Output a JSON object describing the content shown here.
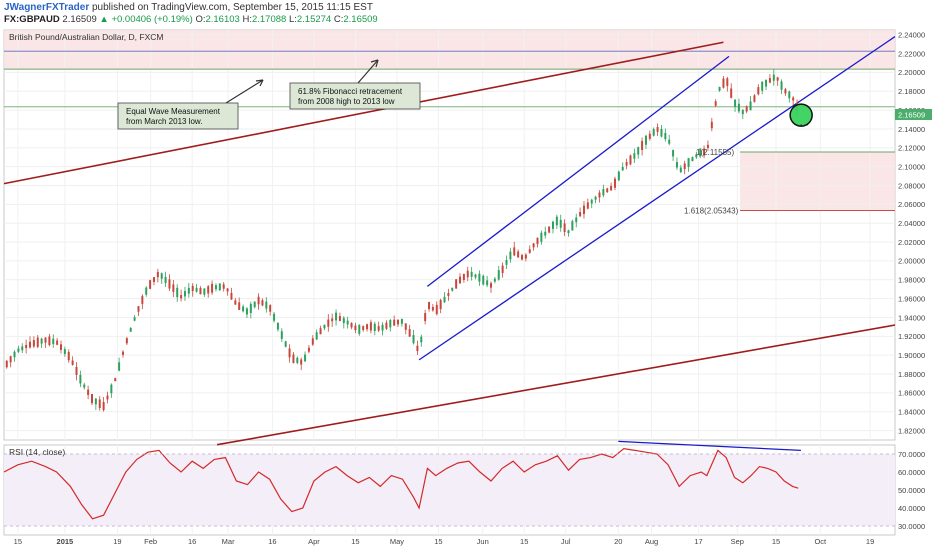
{
  "header": {
    "author": "JWagnerFXTrader",
    "published_text": "published on TradingView.com, September 15, 2015 11:15 EST",
    "symbol": "FX:GBPAUD",
    "last": "2.16509",
    "change": "▲ +0.00406 (+0.19%)",
    "o_label": "O:",
    "o_value": "2.16103",
    "h_label": "H:",
    "h_value": "2.17088",
    "l_label": "L:",
    "l_value": "2.15274",
    "c_label": "C:",
    "c_value": "2.16509"
  },
  "main_pane_title": "British Pound/Australian Dollar, D, FXCM",
  "rsi_pane_title": "RSI (14, close)",
  "annotations": {
    "equal_wave": [
      "Equal Wave Measurement",
      "from March 2013 low."
    ],
    "fib_618": [
      "61.8% Fibonacci retracement",
      "from 2008 high to 2013 low"
    ]
  },
  "fib_levels": {
    "label_1": "1(2.11555)",
    "label_1618": "1.618(2.05343)",
    "level_1": 2.11555,
    "level_1618": 2.05343
  },
  "current_price_tag": "2.16509",
  "colors": {
    "up": "#2ea05e",
    "down": "#c8473b",
    "channel": "#1a1acc",
    "trendline": "#a01c1c",
    "rsi": "#d42a2a",
    "zone": "#f9e2e2",
    "circle": "#35d35a"
  },
  "chart_data": {
    "type": "candlestick",
    "y_axis": {
      "ylim": [
        1.81,
        2.245
      ],
      "ticks": [
        "2.24000",
        "2.22000",
        "2.20000",
        "2.18000",
        "2.16000",
        "2.14000",
        "2.12000",
        "2.10000",
        "2.08000",
        "2.06000",
        "2.04000",
        "2.02000",
        "2.00000",
        "1.98000",
        "1.96000",
        "1.94000",
        "1.92000",
        "1.90000",
        "1.88000",
        "1.86000",
        "1.84000",
        "1.82000"
      ]
    },
    "x_axis": {
      "labels": [
        "15",
        "2015",
        "19",
        "Feb",
        "16",
        "Mar",
        "16",
        "Apr",
        "15",
        "May",
        "15",
        "Jun",
        "15",
        "Jul",
        "20",
        "Aug",
        "17",
        "Sep",
        "15",
        "Oct",
        "19"
      ],
      "label_days": [
        -17,
        0,
        19,
        31,
        46,
        59,
        75,
        90,
        105,
        120,
        135,
        151,
        166,
        181,
        200,
        212,
        229,
        243,
        257,
        273,
        291
      ]
    },
    "x_range_days": [
      -22,
      300
    ],
    "price_path": [
      [
        -22,
        1.887
      ],
      [
        -17,
        1.905
      ],
      [
        -12,
        1.912
      ],
      [
        -7,
        1.916
      ],
      [
        -3,
        1.914
      ],
      [
        2,
        1.897
      ],
      [
        6,
        1.872
      ],
      [
        10,
        1.853
      ],
      [
        14,
        1.846
      ],
      [
        18,
        1.872
      ],
      [
        22,
        1.912
      ],
      [
        26,
        1.945
      ],
      [
        30,
        1.972
      ],
      [
        34,
        1.987
      ],
      [
        38,
        1.975
      ],
      [
        42,
        1.962
      ],
      [
        46,
        1.971
      ],
      [
        50,
        1.967
      ],
      [
        54,
        1.972
      ],
      [
        58,
        1.973
      ],
      [
        62,
        1.954
      ],
      [
        66,
        1.946
      ],
      [
        70,
        1.958
      ],
      [
        74,
        1.951
      ],
      [
        78,
        1.924
      ],
      [
        82,
        1.897
      ],
      [
        86,
        1.892
      ],
      [
        90,
        1.917
      ],
      [
        94,
        1.931
      ],
      [
        98,
        1.941
      ],
      [
        102,
        1.935
      ],
      [
        106,
        1.927
      ],
      [
        110,
        1.931
      ],
      [
        114,
        1.928
      ],
      [
        118,
        1.934
      ],
      [
        122,
        1.936
      ],
      [
        126,
        1.917
      ],
      [
        128,
        1.903
      ],
      [
        131,
        1.954
      ],
      [
        134,
        1.947
      ],
      [
        138,
        1.962
      ],
      [
        142,
        1.978
      ],
      [
        146,
        1.987
      ],
      [
        150,
        1.982
      ],
      [
        154,
        1.974
      ],
      [
        158,
        1.99
      ],
      [
        162,
        2.011
      ],
      [
        166,
        2.002
      ],
      [
        170,
        2.019
      ],
      [
        174,
        2.03
      ],
      [
        178,
        2.043
      ],
      [
        182,
        2.031
      ],
      [
        186,
        2.049
      ],
      [
        190,
        2.062
      ],
      [
        194,
        2.072
      ],
      [
        198,
        2.078
      ],
      [
        202,
        2.1
      ],
      [
        206,
        2.112
      ],
      [
        210,
        2.128
      ],
      [
        214,
        2.14
      ],
      [
        218,
        2.13
      ],
      [
        222,
        2.095
      ],
      [
        226,
        2.106
      ],
      [
        230,
        2.116
      ],
      [
        232,
        2.115
      ],
      [
        236,
        2.18
      ],
      [
        239,
        2.193
      ],
      [
        242,
        2.168
      ],
      [
        245,
        2.158
      ],
      [
        248,
        2.165
      ],
      [
        251,
        2.183
      ],
      [
        254,
        2.19
      ],
      [
        257,
        2.196
      ],
      [
        260,
        2.181
      ],
      [
        263,
        2.173
      ],
      [
        265,
        2.161
      ]
    ],
    "fib_1": 2.11555,
    "fib_1618": 2.05343,
    "channel": {
      "lower": [
        [
          128,
          1.895
        ],
        [
          300,
          2.238
        ]
      ],
      "upper": [
        [
          131,
          1.973
        ],
        [
          240,
          2.217
        ]
      ]
    },
    "trendlines": [
      {
        "from": [
          -22,
          2.082
        ],
        "to": [
          238,
          2.232
        ]
      },
      {
        "from": [
          55,
          1.805
        ],
        "to": [
          300,
          1.932
        ]
      }
    ],
    "horizontal_lines": [
      2.2225,
      2.2035,
      2.1635
    ],
    "zone": {
      "from_y": 2.2035,
      "to_y": 2.245
    },
    "target_zone": {
      "from_day": 244,
      "from_y": 2.05343,
      "to_y": 2.11555
    },
    "rsi": {
      "title": "RSI (14, close)",
      "ylim": [
        25,
        75
      ],
      "ticks": [
        "70.0000",
        "60.0000",
        "50.0000",
        "40.0000",
        "30.0000"
      ],
      "values": [
        [
          -22,
          60
        ],
        [
          -17,
          64
        ],
        [
          -12,
          66
        ],
        [
          -7,
          63
        ],
        [
          -3,
          60
        ],
        [
          2,
          52
        ],
        [
          6,
          42
        ],
        [
          10,
          34
        ],
        [
          14,
          36
        ],
        [
          18,
          48
        ],
        [
          22,
          60
        ],
        [
          26,
          67
        ],
        [
          30,
          71
        ],
        [
          34,
          72
        ],
        [
          38,
          65
        ],
        [
          42,
          60
        ],
        [
          46,
          66
        ],
        [
          50,
          62
        ],
        [
          54,
          67
        ],
        [
          58,
          68
        ],
        [
          62,
          55
        ],
        [
          66,
          53
        ],
        [
          70,
          60
        ],
        [
          74,
          56
        ],
        [
          78,
          45
        ],
        [
          82,
          38
        ],
        [
          86,
          40
        ],
        [
          90,
          55
        ],
        [
          94,
          60
        ],
        [
          98,
          63
        ],
        [
          102,
          58
        ],
        [
          106,
          54
        ],
        [
          110,
          57
        ],
        [
          114,
          52
        ],
        [
          118,
          58
        ],
        [
          122,
          56
        ],
        [
          126,
          46
        ],
        [
          128,
          40
        ],
        [
          131,
          62
        ],
        [
          134,
          58
        ],
        [
          138,
          62
        ],
        [
          142,
          65
        ],
        [
          146,
          66
        ],
        [
          150,
          60
        ],
        [
          154,
          55
        ],
        [
          158,
          62
        ],
        [
          162,
          66
        ],
        [
          166,
          60
        ],
        [
          170,
          64
        ],
        [
          174,
          66
        ],
        [
          178,
          69
        ],
        [
          182,
          61
        ],
        [
          186,
          67
        ],
        [
          190,
          68
        ],
        [
          194,
          70
        ],
        [
          198,
          68
        ],
        [
          202,
          73
        ],
        [
          206,
          72
        ],
        [
          210,
          71
        ],
        [
          214,
          70
        ],
        [
          218,
          64
        ],
        [
          222,
          52
        ],
        [
          226,
          58
        ],
        [
          230,
          60
        ],
        [
          232,
          58
        ],
        [
          236,
          72
        ],
        [
          239,
          68
        ],
        [
          242,
          57
        ],
        [
          245,
          54
        ],
        [
          248,
          58
        ],
        [
          251,
          63
        ],
        [
          254,
          62
        ],
        [
          257,
          60
        ],
        [
          260,
          55
        ],
        [
          263,
          52
        ],
        [
          265,
          51
        ]
      ],
      "divergence_line": [
        [
          200,
          77
        ],
        [
          266,
          72
        ]
      ]
    }
  }
}
